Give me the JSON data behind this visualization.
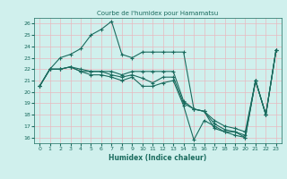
{
  "title": "Courbe de l'humidex pour Hamamatsu",
  "xlabel": "Humidex (Indice chaleur)",
  "ylabel": "",
  "xlim": [
    -0.5,
    23.5
  ],
  "ylim": [
    15.5,
    26.5
  ],
  "yticks": [
    16,
    17,
    18,
    19,
    20,
    21,
    22,
    23,
    24,
    25,
    26
  ],
  "xticks": [
    0,
    1,
    2,
    3,
    4,
    5,
    6,
    7,
    8,
    9,
    10,
    11,
    12,
    13,
    14,
    15,
    16,
    17,
    18,
    19,
    20,
    21,
    22,
    23
  ],
  "bg_color": "#d0f0ed",
  "grid_color": "#e8b8c0",
  "line_color": "#1a6b5e",
  "lines": [
    {
      "x": [
        0,
        1,
        2,
        3,
        4,
        5,
        6,
        7,
        8,
        9,
        10,
        11,
        12,
        13,
        14,
        15,
        16,
        17,
        18,
        19,
        20,
        21,
        22,
        23
      ],
      "y": [
        20.5,
        22.0,
        23.0,
        23.3,
        23.8,
        25.0,
        25.5,
        26.2,
        23.3,
        23.0,
        23.5,
        23.5,
        23.5,
        23.5,
        23.5,
        18.5,
        18.3,
        16.8,
        16.5,
        16.2,
        16.0,
        21.0,
        18.0,
        23.7
      ]
    },
    {
      "x": [
        0,
        1,
        2,
        3,
        4,
        5,
        6,
        7,
        8,
        9,
        10,
        11,
        12,
        13,
        14,
        15,
        16,
        17,
        18,
        19,
        20,
        21,
        22,
        23
      ],
      "y": [
        20.5,
        22.0,
        22.0,
        22.2,
        21.8,
        21.8,
        21.8,
        21.5,
        21.3,
        21.5,
        21.2,
        20.8,
        21.3,
        21.3,
        19.0,
        18.5,
        18.3,
        17.2,
        16.7,
        16.5,
        16.2,
        21.0,
        18.0,
        23.7
      ]
    },
    {
      "x": [
        0,
        1,
        2,
        3,
        4,
        5,
        6,
        7,
        8,
        9,
        10,
        11,
        12,
        13,
        14,
        15,
        16,
        17,
        18,
        19,
        20,
        21,
        22,
        23
      ],
      "y": [
        20.5,
        22.0,
        22.0,
        22.2,
        21.8,
        21.5,
        21.5,
        21.3,
        21.0,
        21.3,
        20.5,
        20.5,
        20.8,
        21.0,
        18.8,
        15.8,
        17.5,
        17.0,
        16.5,
        16.5,
        16.0,
        21.0,
        18.0,
        23.7
      ]
    },
    {
      "x": [
        0,
        1,
        2,
        3,
        4,
        5,
        6,
        7,
        8,
        9,
        10,
        11,
        12,
        13,
        14,
        15,
        16,
        17,
        18,
        19,
        20,
        21,
        22,
        23
      ],
      "y": [
        20.5,
        22.0,
        22.0,
        22.2,
        22.0,
        21.8,
        21.8,
        21.8,
        21.5,
        21.8,
        21.8,
        21.8,
        21.8,
        21.8,
        19.2,
        18.5,
        18.3,
        17.5,
        17.0,
        16.8,
        16.5,
        21.0,
        18.0,
        23.7
      ]
    }
  ]
}
